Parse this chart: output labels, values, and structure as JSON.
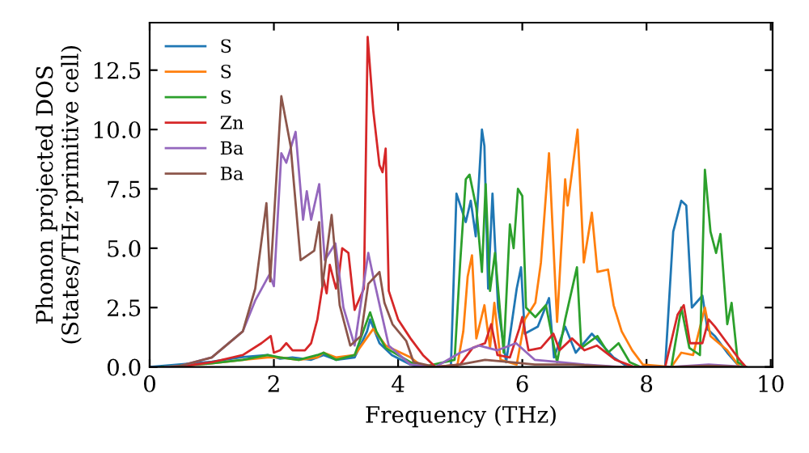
{
  "chart_data": {
    "type": "line",
    "xlabel": "Frequency (THz)",
    "ylabel": "Phonon projected DOS\n(States/THz·primitive cell)",
    "xlim": [
      0,
      10.03
    ],
    "ylim": [
      0,
      14.5
    ],
    "xticks": [
      0,
      2,
      4,
      6,
      8,
      10
    ],
    "yticks": [
      {
        "value": 0,
        "label": "0.0"
      },
      2.5,
      {
        "value": 5,
        "label": "5.0"
      },
      7.5,
      {
        "value": 10,
        "label": "10.0"
      },
      12.5
    ],
    "grid": false,
    "legend": "top left",
    "marker": "none",
    "line_style": "solid",
    "series": [
      {
        "name": "S",
        "color": "#1f77b4",
        "x": [
          0,
          1,
          1.5,
          1.9,
          2.1,
          2.3,
          2.6,
          2.8,
          3.0,
          3.3,
          3.5,
          3.55,
          3.7,
          3.9,
          4.2,
          4.4,
          4.85,
          4.94,
          5.09,
          5.17,
          5.25,
          5.35,
          5.39,
          5.45,
          5.52,
          5.61,
          5.74,
          5.91,
          5.98,
          6.04,
          6.25,
          6.43,
          6.51,
          6.69,
          6.86,
          7.12,
          7.47,
          7.7,
          8.3,
          8.43,
          8.56,
          8.64,
          8.73,
          8.9,
          8.98,
          9.1,
          9.3,
          9.5
        ],
        "values": [
          0,
          0.22,
          0.42,
          0.5,
          0.35,
          0.4,
          0.3,
          0.5,
          0.3,
          0.4,
          1.5,
          2.0,
          1.0,
          0.5,
          0.1,
          0,
          0,
          7.3,
          6.1,
          7.0,
          5.5,
          10.0,
          9.3,
          3.3,
          7.3,
          2.5,
          0.2,
          3.3,
          4.2,
          1.4,
          1.7,
          2.9,
          0.4,
          1.7,
          0.6,
          1.4,
          0.4,
          0,
          0,
          5.7,
          7.0,
          6.8,
          2.5,
          3.0,
          1.6,
          1.3,
          0.6,
          0
        ]
      },
      {
        "name": "S",
        "color": "#ff7f0e",
        "x": [
          0.3,
          1,
          1.5,
          1.9,
          2.1,
          2.4,
          2.7,
          2.8,
          3.0,
          3.3,
          3.6,
          3.8,
          4.2,
          4.4,
          4.95,
          5.05,
          5.12,
          5.19,
          5.26,
          5.39,
          5.48,
          5.55,
          5.65,
          5.91,
          6.04,
          6.21,
          6.3,
          6.43,
          6.56,
          6.69,
          6.73,
          6.89,
          6.99,
          7.12,
          7.21,
          7.38,
          7.47,
          7.6,
          7.77,
          7.94,
          8.4,
          8.56,
          8.75,
          8.94,
          9.03,
          9.3,
          9.5
        ],
        "values": [
          0,
          0.15,
          0.3,
          0.4,
          0.4,
          0.3,
          0.4,
          0.6,
          0.4,
          0.5,
          1.6,
          0.9,
          0.4,
          0,
          0,
          1.5,
          3.8,
          4.7,
          1.2,
          2.6,
          0.8,
          2.7,
          0.3,
          0.1,
          2.0,
          2.7,
          4.4,
          9.0,
          1.9,
          7.9,
          6.8,
          10.0,
          4.4,
          6.5,
          4.0,
          4.1,
          2.6,
          1.5,
          0.7,
          0.1,
          0,
          0.6,
          0.5,
          2.5,
          1.3,
          0.7,
          0
        ]
      },
      {
        "name": "S",
        "color": "#2ca02c",
        "x": [
          0.2,
          1,
          1.5,
          1.9,
          2.1,
          2.4,
          2.7,
          2.8,
          3.0,
          3.3,
          3.55,
          3.65,
          3.8,
          4.2,
          4.4,
          4.91,
          5.0,
          5.09,
          5.15,
          5.26,
          5.35,
          5.41,
          5.48,
          5.56,
          5.7,
          5.8,
          5.86,
          5.93,
          6.0,
          6.06,
          6.21,
          6.38,
          6.56,
          6.69,
          6.88,
          6.95,
          7.21,
          7.38,
          7.55,
          7.73,
          7.9,
          8.4,
          8.56,
          8.69,
          8.86,
          8.94,
          9.03,
          9.12,
          9.19,
          9.3,
          9.37,
          9.47,
          9.6
        ],
        "values": [
          0,
          0.15,
          0.3,
          0.5,
          0.4,
          0.3,
          0.5,
          0.6,
          0.3,
          0.5,
          2.3,
          1.5,
          0.8,
          0.2,
          0,
          0.3,
          4.4,
          7.9,
          8.1,
          6.7,
          4.0,
          7.7,
          3.2,
          4.8,
          0.6,
          6.0,
          5.0,
          7.5,
          7.2,
          2.5,
          2.1,
          2.6,
          0.2,
          2.0,
          4.2,
          0.8,
          1.3,
          0.6,
          1.0,
          0.2,
          0,
          0,
          2.5,
          0.8,
          0.5,
          8.3,
          5.7,
          4.8,
          5.6,
          1.8,
          2.7,
          0.2,
          0
        ]
      },
      {
        "name": "Zn",
        "color": "#d62728",
        "x": [
          0.4,
          0.5,
          1,
          1.5,
          1.8,
          1.95,
          2.0,
          2.1,
          2.2,
          2.3,
          2.5,
          2.6,
          2.7,
          2.8,
          2.85,
          2.9,
          3.0,
          3.05,
          3.1,
          3.2,
          3.3,
          3.45,
          3.51,
          3.6,
          3.7,
          3.75,
          3.8,
          3.85,
          4.0,
          4.2,
          4.4,
          4.6,
          5.0,
          5.2,
          5.4,
          5.5,
          5.6,
          5.8,
          5.95,
          6.0,
          6.1,
          6.3,
          6.5,
          6.6,
          6.8,
          7.0,
          7.2,
          7.5,
          7.8,
          8.3,
          8.5,
          8.6,
          8.7,
          8.9,
          9.0,
          9.1,
          9.3,
          9.5,
          9.6
        ],
        "values": [
          0,
          0.02,
          0.2,
          0.5,
          1.0,
          1.3,
          0.6,
          0.7,
          1.0,
          0.7,
          0.7,
          1.0,
          2.0,
          3.7,
          3.1,
          4.3,
          3.3,
          3.9,
          5.0,
          4.8,
          2.4,
          3.3,
          13.9,
          10.8,
          8.5,
          8.2,
          9.2,
          3.2,
          2.0,
          1.2,
          0.5,
          0,
          0.1,
          0.8,
          1.0,
          1.8,
          0.5,
          0.4,
          1.6,
          2.1,
          0.7,
          0.8,
          1.4,
          0.7,
          1.2,
          0.7,
          0.9,
          0.3,
          0,
          0,
          2.2,
          2.6,
          1.0,
          1.0,
          2.0,
          1.7,
          1.0,
          0.3,
          0
        ]
      },
      {
        "name": "Ba",
        "color": "#9467bd",
        "x": [
          0.25,
          0.5,
          1,
          1.5,
          1.7,
          1.93,
          2.0,
          2.12,
          2.2,
          2.35,
          2.47,
          2.53,
          2.6,
          2.73,
          2.82,
          2.99,
          3.12,
          3.3,
          3.52,
          3.6,
          3.72,
          3.85,
          4.2,
          4.6,
          5.0,
          5.3,
          5.6,
          5.9,
          6.2,
          6.6,
          7.0,
          7.6,
          8.4,
          9.0,
          9.6
        ],
        "values": [
          0,
          0.05,
          0.4,
          1.5,
          2.8,
          3.9,
          3.4,
          9.0,
          8.6,
          9.9,
          6.2,
          7.4,
          6.2,
          7.7,
          4.5,
          5.2,
          2.5,
          0.9,
          4.8,
          3.8,
          2.4,
          0.9,
          0.1,
          0,
          0.6,
          0.9,
          0.7,
          1.0,
          0.3,
          0.2,
          0.1,
          0,
          0,
          0.1,
          0
        ]
      },
      {
        "name": "Ba",
        "color": "#8c564b",
        "x": [
          0.35,
          0.5,
          1,
          1.5,
          1.7,
          1.88,
          1.94,
          2.12,
          2.27,
          2.43,
          2.65,
          2.73,
          2.78,
          2.93,
          3.06,
          3.23,
          3.4,
          3.52,
          3.7,
          3.78,
          3.91,
          4.13,
          4.25,
          4.6,
          5.0,
          5.4,
          5.8,
          6.2,
          6.8,
          7.5,
          8.4,
          9.0,
          9.6
        ],
        "values": [
          0,
          0.05,
          0.4,
          1.5,
          3.3,
          6.9,
          3.6,
          11.4,
          9.3,
          4.5,
          4.9,
          6.1,
          3.4,
          6.4,
          2.6,
          0.9,
          1.3,
          3.5,
          4.0,
          2.7,
          1.8,
          1.1,
          0.2,
          0,
          0.1,
          0.3,
          0.2,
          0.1,
          0.1,
          0,
          0,
          0.05,
          0
        ]
      }
    ]
  }
}
